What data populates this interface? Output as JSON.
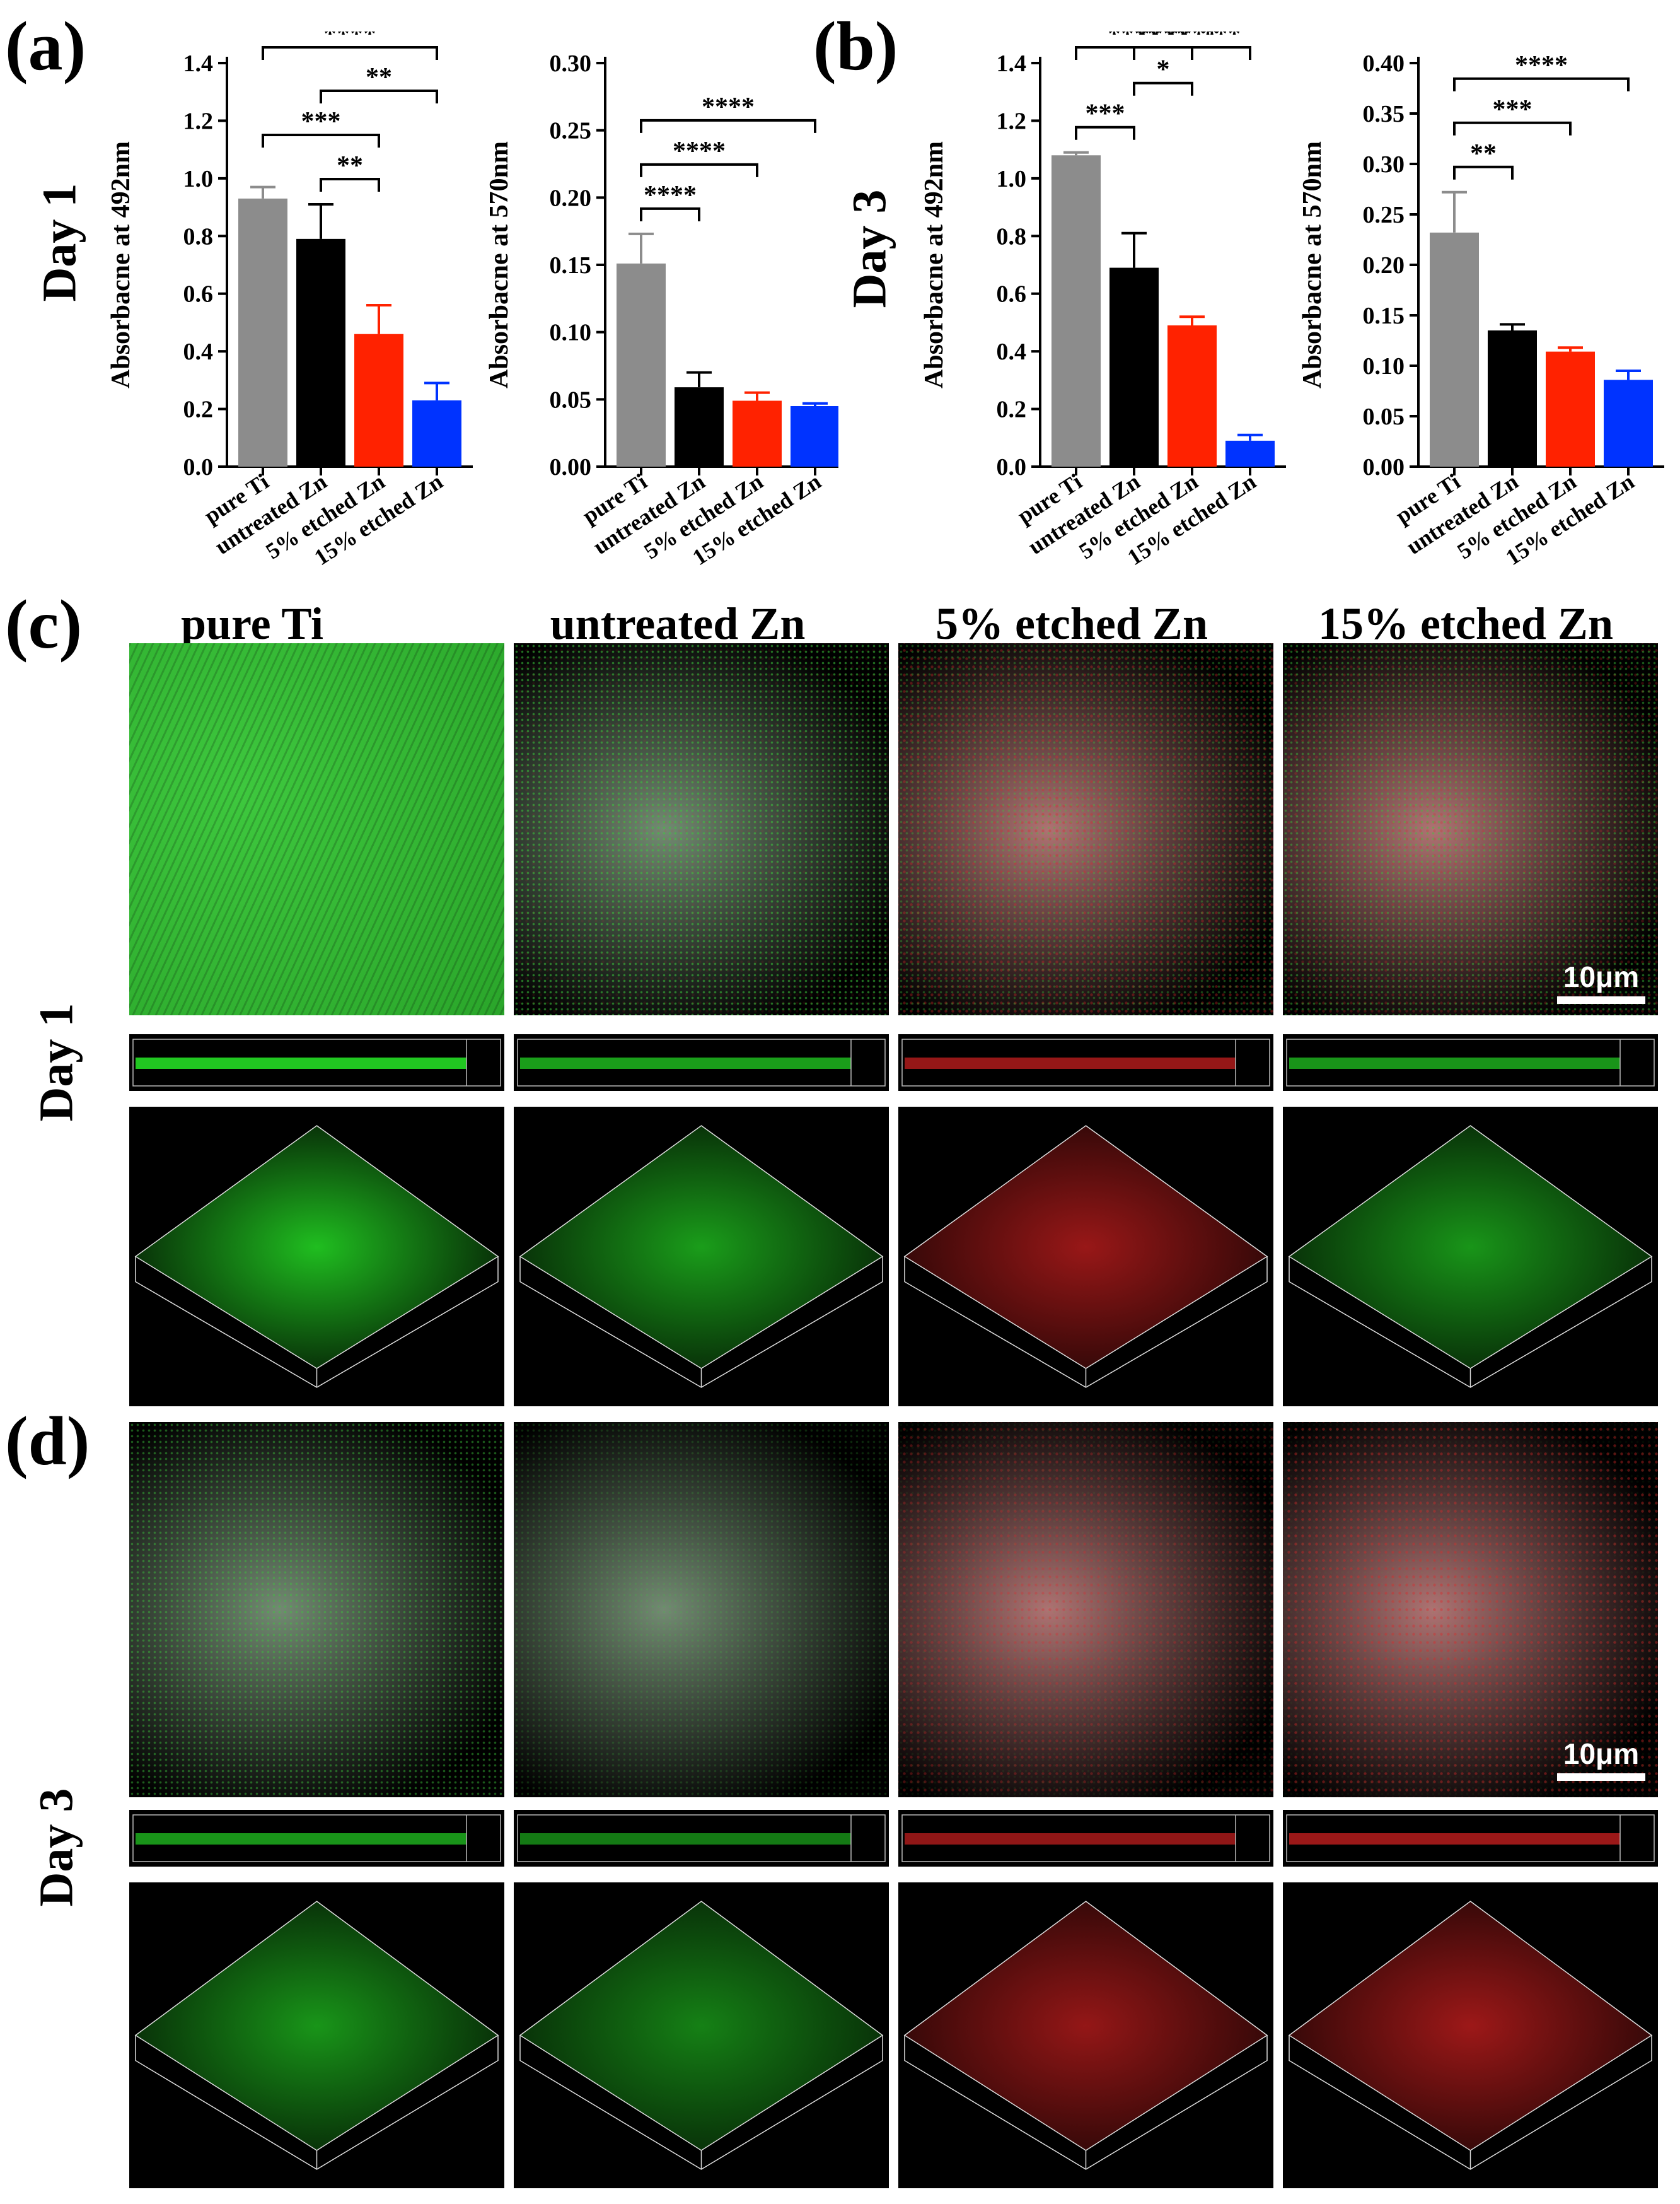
{
  "panels": {
    "a": "(a)",
    "b": "(b)",
    "c": "(c)",
    "d": "(d)"
  },
  "day_labels": {
    "day1": "Day 1",
    "day3": "Day 3"
  },
  "columns": [
    "pure Ti",
    "untreated Zn",
    "5% etched Zn",
    "15% etched Zn"
  ],
  "scalebar": "10μm",
  "colors": {
    "pure_ti": "#8c8c8c",
    "untreated_zn": "#000000",
    "etched5": "#ff2200",
    "etched15": "#0033ff",
    "live_stain": "#22cc22",
    "dead_stain": "#dd2222"
  },
  "chart_data": [
    {
      "type": "bar",
      "panel": "a",
      "ylabel": "Absorbacne at 492nm",
      "ylim": [
        0,
        1.4
      ],
      "yticks": [
        "0.0",
        "0.2",
        "0.4",
        "0.6",
        "0.8",
        "1.0",
        "1.2",
        "1.4"
      ],
      "categories": [
        "pure Ti",
        "untreated Zn",
        "5% etched Zn",
        "15% etched Zn"
      ],
      "values": [
        0.93,
        0.79,
        0.46,
        0.23
      ],
      "errors": [
        0.04,
        0.12,
        0.1,
        0.06
      ],
      "significance": [
        {
          "from": 0,
          "to": 3,
          "label": "****"
        },
        {
          "from": 0,
          "to": 2,
          "label": "***"
        },
        {
          "from": 1,
          "to": 3,
          "label": "**"
        },
        {
          "from": 1,
          "to": 2,
          "label": "**"
        }
      ]
    },
    {
      "type": "bar",
      "panel": "a",
      "ylabel": "Absorbacne at 570nm",
      "ylim": [
        0,
        0.3
      ],
      "yticks": [
        "0.00",
        "0.05",
        "0.10",
        "0.15",
        "0.20",
        "0.25",
        "0.30"
      ],
      "categories": [
        "pure Ti",
        "untreated Zn",
        "5% etched Zn",
        "15% etched Zn"
      ],
      "values": [
        0.151,
        0.059,
        0.049,
        0.045
      ],
      "errors": [
        0.022,
        0.011,
        0.006,
        0.002
      ],
      "significance": [
        {
          "from": 0,
          "to": 3,
          "label": "****"
        },
        {
          "from": 0,
          "to": 2,
          "label": "****"
        },
        {
          "from": 0,
          "to": 1,
          "label": "****"
        }
      ]
    },
    {
      "type": "bar",
      "panel": "b",
      "ylabel": "Absorbacne at 492nm",
      "ylim": [
        0,
        1.4
      ],
      "yticks": [
        "0.0",
        "0.2",
        "0.4",
        "0.6",
        "0.8",
        "1.0",
        "1.2",
        "1.4"
      ],
      "categories": [
        "pure Ti",
        "untreated Zn",
        "5% etched Zn",
        "15% etched Zn"
      ],
      "values": [
        1.08,
        0.69,
        0.49,
        0.09
      ],
      "errors": [
        0.01,
        0.12,
        0.03,
        0.02
      ],
      "significance": [
        {
          "from": 0,
          "to": 3,
          "label": "****"
        },
        {
          "from": 0,
          "to": 2,
          "label": "****"
        },
        {
          "from": 0,
          "to": 1,
          "label": "***"
        },
        {
          "from": 1,
          "to": 3,
          "label": "****"
        },
        {
          "from": 1,
          "to": 2,
          "label": "*"
        },
        {
          "from": 2,
          "to": 3,
          "label": "***"
        }
      ]
    },
    {
      "type": "bar",
      "panel": "b",
      "ylabel": "Absorbacne at 570nm",
      "ylim": [
        0,
        0.4
      ],
      "yticks": [
        "0.00",
        "0.05",
        "0.10",
        "0.15",
        "0.20",
        "0.25",
        "0.30",
        "0.35",
        "0.40"
      ],
      "categories": [
        "pure Ti",
        "untreated Zn",
        "5% etched Zn",
        "15% etched Zn"
      ],
      "values": [
        0.232,
        0.135,
        0.114,
        0.086
      ],
      "errors": [
        0.04,
        0.006,
        0.004,
        0.009
      ],
      "significance": [
        {
          "from": 0,
          "to": 3,
          "label": "****"
        },
        {
          "from": 0,
          "to": 2,
          "label": "***"
        },
        {
          "from": 0,
          "to": 1,
          "label": "**"
        }
      ]
    }
  ]
}
